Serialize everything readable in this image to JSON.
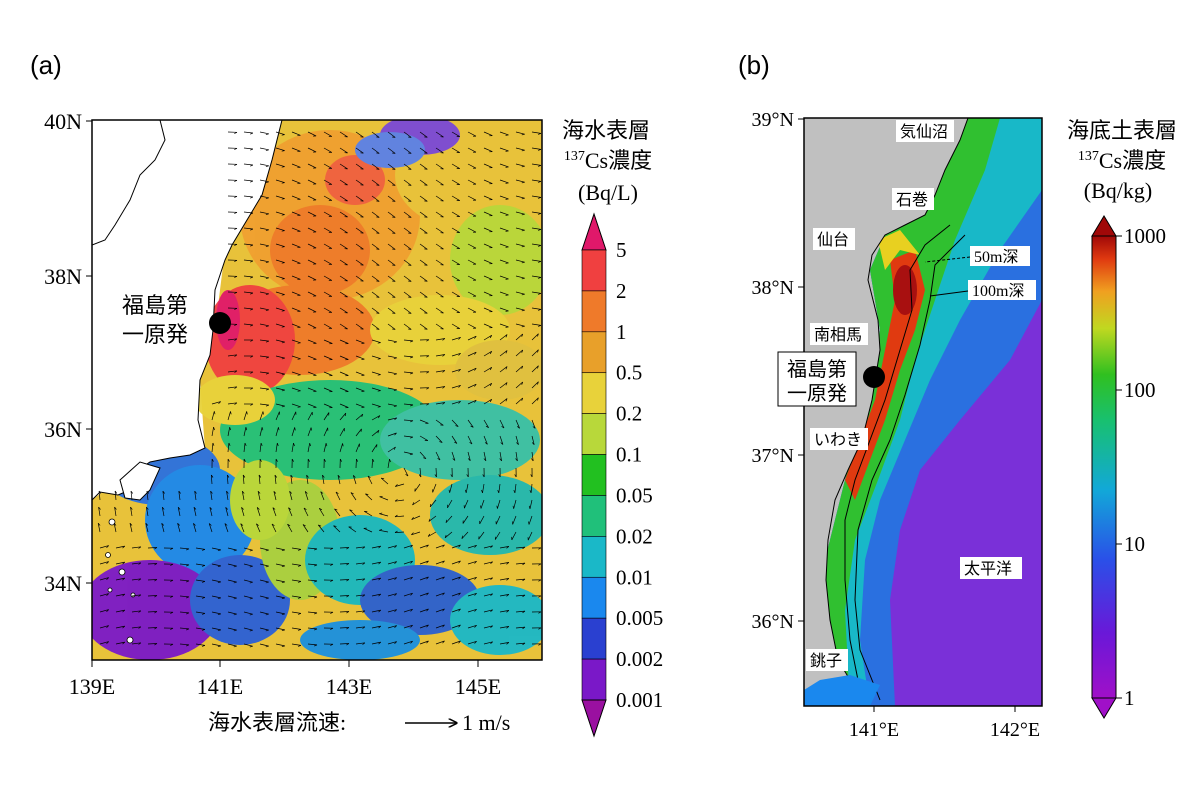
{
  "panel_a": {
    "label": "(a)",
    "colorbar_title": [
      "海水表層",
      "137Cs濃度",
      "(Bq/L)"
    ],
    "colorbar_ticks": [
      "5",
      "2",
      "1",
      "0.5",
      "0.2",
      "0.1",
      "0.05",
      "0.02",
      "0.01",
      "0.005",
      "0.002",
      "0.001"
    ],
    "colorbar_colors": [
      "#e0186a",
      "#f04040",
      "#ef7a2a",
      "#e8a02a",
      "#e8d23a",
      "#b8d83a",
      "#22c020",
      "#20c07a",
      "#1ab8c8",
      "#1a88ee",
      "#2a40d0",
      "#7a18c8",
      "#9a10a0"
    ],
    "lat_ticks": [
      "40N",
      "38N",
      "36N",
      "34N"
    ],
    "lon_ticks": [
      "139E",
      "141E",
      "143E",
      "145E"
    ],
    "plant_label": [
      "福島第",
      "一原発"
    ],
    "current_legend": "海水表層流速:",
    "current_unit": "1 m/s"
  },
  "panel_b": {
    "label": "(b)",
    "colorbar_title": [
      "海底土表層",
      "137Cs濃度",
      "(Bq/kg)"
    ],
    "colorbar_ticks": [
      "1000",
      "100",
      "10",
      "1"
    ],
    "lat_ticks": [
      "39°N",
      "38°N",
      "37°N",
      "36°N"
    ],
    "lon_ticks": [
      "141°E",
      "142°E"
    ],
    "place_labels": [
      "気仙沼",
      "石巻",
      "仙台",
      "南相馬",
      "いわき",
      "銚子",
      "太平洋"
    ],
    "depth_labels": [
      "50m深",
      "100m深"
    ],
    "plant_label": [
      "福島第",
      "一原発"
    ]
  }
}
